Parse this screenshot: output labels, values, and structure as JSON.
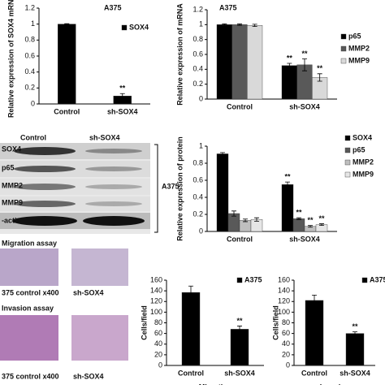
{
  "chart_data": [
    {
      "type": "bar",
      "title": "A375",
      "ylabel": "Relative expression of SOX4 mRNA",
      "categories": [
        "Control",
        "sh-SOX4"
      ],
      "ylim": [
        0,
        1.2
      ],
      "yticks": [
        0,
        0.2,
        0.4,
        0.6,
        0.8,
        1,
        1.2
      ],
      "series": [
        {
          "name": "SOX4",
          "color": "#000000",
          "values": [
            1,
            0.1
          ],
          "errors": [
            0.005,
            0.03
          ],
          "significance": [
            null,
            "**"
          ]
        }
      ]
    },
    {
      "type": "bar",
      "title": "A375",
      "ylabel": "Relative expression of mRNA",
      "categories": [
        "Control",
        "sh-SOX4"
      ],
      "ylim": [
        0,
        1.2
      ],
      "yticks": [
        0,
        0.2,
        0.4,
        0.6,
        0.8,
        1,
        1.2
      ],
      "series": [
        {
          "name": "p65",
          "color": "#000000",
          "values": [
            1,
            0.45
          ],
          "errors": [
            0.01,
            0.03
          ],
          "significance": [
            null,
            "**"
          ]
        },
        {
          "name": "MMP2",
          "color": "#595959",
          "values": [
            1,
            0.46
          ],
          "errors": [
            0.01,
            0.08
          ],
          "significance": [
            null,
            "**"
          ]
        },
        {
          "name": "MMP9",
          "color": "#d9d9d9",
          "values": [
            0.99,
            0.29
          ],
          "errors": [
            0.015,
            0.05
          ],
          "significance": [
            null,
            "**"
          ]
        }
      ]
    },
    {
      "type": "bar",
      "ylabel": "Relative expression of protein",
      "categories": [
        "Control",
        "sh-SOX4"
      ],
      "ylim": [
        0,
        1
      ],
      "yticks": [
        0,
        0.2,
        0.4,
        0.6,
        0.8,
        1
      ],
      "series": [
        {
          "name": "SOX4",
          "color": "#000000",
          "values": [
            0.91,
            0.55
          ],
          "errors": [
            0.015,
            0.03
          ],
          "significance": [
            null,
            "**"
          ]
        },
        {
          "name": "p65",
          "color": "#595959",
          "values": [
            0.21,
            0.15
          ],
          "errors": [
            0.03,
            0.01
          ],
          "significance": [
            null,
            "**"
          ]
        },
        {
          "name": "MMP2",
          "color": "#bfbfbf",
          "values": [
            0.13,
            0.06
          ],
          "errors": [
            0.015,
            0.01
          ],
          "significance": [
            null,
            "**"
          ]
        },
        {
          "name": "MMP9",
          "color": "#e6e6e6",
          "values": [
            0.14,
            0.08
          ],
          "errors": [
            0.02,
            0.01
          ],
          "significance": [
            null,
            "**"
          ]
        }
      ]
    },
    {
      "type": "bar",
      "ylabel": "Cells/field",
      "xlabel": "Migration",
      "categories": [
        "Control",
        "sh-SOX4"
      ],
      "ylim": [
        0,
        160
      ],
      "yticks": [
        0,
        20,
        40,
        60,
        80,
        100,
        120,
        140,
        160
      ],
      "series": [
        {
          "name": "A375",
          "color": "#000000",
          "values": [
            137,
            68
          ],
          "errors": [
            12,
            6
          ],
          "significance": [
            null,
            "**"
          ]
        }
      ]
    },
    {
      "type": "bar",
      "ylabel": "Cells/field",
      "xlabel": "Invasion",
      "categories": [
        "Control",
        "sh-SOX4"
      ],
      "ylim": [
        0,
        160
      ],
      "yticks": [
        0,
        20,
        40,
        60,
        80,
        100,
        120,
        140,
        160
      ],
      "series": [
        {
          "name": "A375",
          "color": "#000000",
          "values": [
            122,
            60
          ],
          "errors": [
            10,
            3
          ],
          "significance": [
            null,
            "**"
          ]
        }
      ]
    }
  ],
  "blot": {
    "lanes": [
      "Control",
      "sh-SOX4"
    ],
    "proteins": [
      "SOX4",
      "p65",
      "MMP2",
      "MMP9",
      "-actin"
    ],
    "cell_line": "A375"
  },
  "assay_images": {
    "rows": [
      {
        "title": "Migration assay",
        "captions": [
          "375 control x400",
          "sh-SOX4"
        ]
      },
      {
        "title": "Invasion assay",
        "captions": [
          "375 control x400",
          "sh-SOX4"
        ]
      }
    ]
  }
}
